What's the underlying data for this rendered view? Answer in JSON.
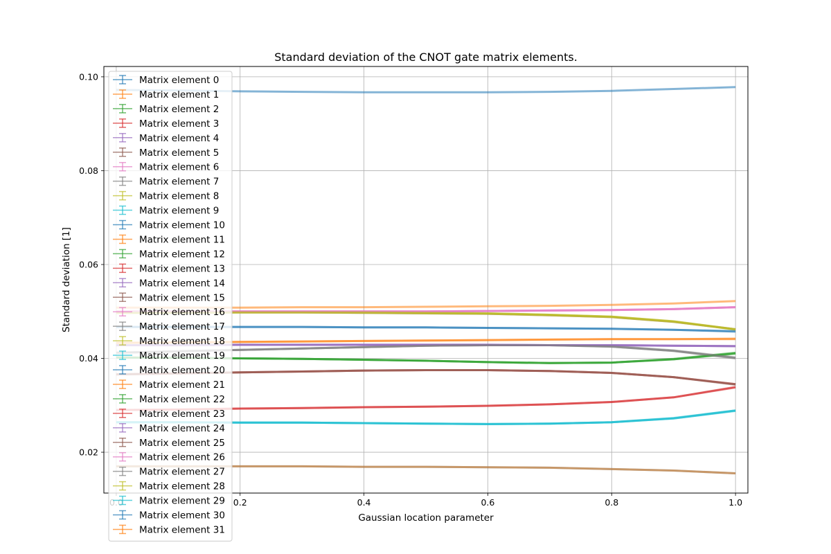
{
  "chart_data": {
    "type": "line",
    "title": "Standard deviation of the CNOT gate matrix elements.",
    "xlabel": "Gaussian location parameter",
    "ylabel": "Standard deviation [1]",
    "xlim": [
      -0.02,
      1.02
    ],
    "ylim": [
      0.0113,
      0.1022
    ],
    "xticks": [
      0.0,
      0.2,
      0.4,
      0.6,
      0.8,
      1.0
    ],
    "xtick_labels": [
      "0.0",
      "0.2",
      "0.4",
      "0.6",
      "0.8",
      "1.0"
    ],
    "yticks": [
      0.02,
      0.04,
      0.06,
      0.08,
      0.1
    ],
    "ytick_labels": [
      "0.02",
      "0.04",
      "0.06",
      "0.08",
      "0.10"
    ],
    "grid": true,
    "legend_position": "upper-left",
    "x": [
      0.0,
      0.1,
      0.2,
      0.3,
      0.4,
      0.5,
      0.6,
      0.7,
      0.8,
      0.9,
      1.0
    ],
    "colors": [
      "#1f77b4",
      "#ff7f0e",
      "#2ca02c",
      "#d62728",
      "#9467bd",
      "#8c564b",
      "#e377c2",
      "#7f7f7f",
      "#bcbd22",
      "#17becf"
    ],
    "series": [
      {
        "name": "Matrix element 0",
        "values": [
          0.0972,
          0.0971,
          0.0969,
          0.0968,
          0.0967,
          0.0967,
          0.0967,
          0.0968,
          0.097,
          0.0974,
          0.0978
        ]
      },
      {
        "name": "Matrix element 1",
        "values": [
          0.0508,
          0.0508,
          0.0508,
          0.0509,
          0.0509,
          0.051,
          0.0511,
          0.0512,
          0.0514,
          0.0517,
          0.0522
        ]
      },
      {
        "name": "Matrix element 2",
        "values": [
          0.0402,
          0.0401,
          0.04,
          0.0399,
          0.0397,
          0.0395,
          0.0392,
          0.039,
          0.0391,
          0.0398,
          0.041
        ]
      },
      {
        "name": "Matrix element 3",
        "values": [
          0.0366,
          0.0368,
          0.037,
          0.0372,
          0.0374,
          0.0375,
          0.0375,
          0.0373,
          0.0369,
          0.036,
          0.0345
        ]
      },
      {
        "name": "Matrix element 4",
        "values": [
          0.0428,
          0.0428,
          0.0429,
          0.0429,
          0.0429,
          0.0429,
          0.0429,
          0.0428,
          0.0428,
          0.0427,
          0.0426
        ]
      },
      {
        "name": "Matrix element 5",
        "values": [
          0.0497,
          0.0498,
          0.0498,
          0.0498,
          0.0497,
          0.0496,
          0.0495,
          0.0492,
          0.0488,
          0.0478,
          0.0462
        ]
      },
      {
        "name": "Matrix element 6",
        "values": [
          0.05,
          0.05,
          0.05,
          0.05,
          0.05,
          0.05,
          0.0501,
          0.0502,
          0.0503,
          0.0505,
          0.0509
        ]
      },
      {
        "name": "Matrix element 7",
        "values": [
          0.0412,
          0.0415,
          0.0418,
          0.0421,
          0.0424,
          0.0427,
          0.0428,
          0.0428,
          0.0425,
          0.0416,
          0.04
        ]
      },
      {
        "name": "Matrix element 8",
        "values": [
          0.0497,
          0.0497,
          0.0498,
          0.0498,
          0.0498,
          0.0497,
          0.0496,
          0.0493,
          0.0489,
          0.0479,
          0.0461
        ]
      },
      {
        "name": "Matrix element 9",
        "values": [
          0.0264,
          0.0264,
          0.0263,
          0.0263,
          0.0262,
          0.0261,
          0.026,
          0.0261,
          0.0264,
          0.0272,
          0.0288
        ]
      },
      {
        "name": "Matrix element 10",
        "values": [
          0.0467,
          0.0467,
          0.0467,
          0.0467,
          0.0466,
          0.0466,
          0.0465,
          0.0464,
          0.0463,
          0.0461,
          0.0457
        ]
      },
      {
        "name": "Matrix element 11",
        "values": [
          0.0433,
          0.0434,
          0.0435,
          0.0436,
          0.0437,
          0.0438,
          0.0439,
          0.044,
          0.0441,
          0.0441,
          0.0441
        ]
      },
      {
        "name": "Matrix element 12",
        "values": [
          0.0402,
          0.0401,
          0.04,
          0.0399,
          0.0397,
          0.0395,
          0.0392,
          0.039,
          0.0391,
          0.0399,
          0.0412
        ]
      },
      {
        "name": "Matrix element 13",
        "values": [
          0.029,
          0.0291,
          0.0293,
          0.0294,
          0.0296,
          0.0297,
          0.0299,
          0.0302,
          0.0307,
          0.0317,
          0.0338
        ]
      },
      {
        "name": "Matrix element 14",
        "values": [
          0.0428,
          0.0428,
          0.0429,
          0.0429,
          0.0429,
          0.0429,
          0.0429,
          0.0428,
          0.0428,
          0.0427,
          0.0426
        ]
      },
      {
        "name": "Matrix element 15",
        "values": [
          0.0366,
          0.0368,
          0.037,
          0.0372,
          0.0374,
          0.0375,
          0.0375,
          0.0373,
          0.0369,
          0.036,
          0.0344
        ]
      },
      {
        "name": "Matrix element 16",
        "values": [
          0.05,
          0.05,
          0.05,
          0.05,
          0.05,
          0.05,
          0.0501,
          0.0502,
          0.0503,
          0.0505,
          0.0509
        ]
      },
      {
        "name": "Matrix element 17",
        "values": [
          0.0412,
          0.0415,
          0.0418,
          0.0421,
          0.0424,
          0.0427,
          0.0428,
          0.0428,
          0.0426,
          0.0417,
          0.0402
        ]
      },
      {
        "name": "Matrix element 18",
        "values": [
          0.0497,
          0.0498,
          0.0498,
          0.0498,
          0.0497,
          0.0496,
          0.0495,
          0.0492,
          0.0488,
          0.0478,
          0.0462
        ]
      },
      {
        "name": "Matrix element 19",
        "values": [
          0.0264,
          0.0264,
          0.0263,
          0.0263,
          0.0262,
          0.0261,
          0.026,
          0.0261,
          0.0264,
          0.0272,
          0.0289
        ]
      },
      {
        "name": "Matrix element 20",
        "values": [
          0.0467,
          0.0467,
          0.0467,
          0.0467,
          0.0466,
          0.0466,
          0.0465,
          0.0464,
          0.0463,
          0.0461,
          0.0458
        ]
      },
      {
        "name": "Matrix element 21",
        "values": [
          0.0433,
          0.0434,
          0.0435,
          0.0436,
          0.0437,
          0.0438,
          0.0439,
          0.044,
          0.0441,
          0.0441,
          0.0442
        ]
      },
      {
        "name": "Matrix element 22",
        "values": [
          0.0402,
          0.0401,
          0.04,
          0.0399,
          0.0397,
          0.0395,
          0.0392,
          0.039,
          0.0391,
          0.0398,
          0.0411
        ]
      },
      {
        "name": "Matrix element 23",
        "values": [
          0.029,
          0.0291,
          0.0293,
          0.0294,
          0.0296,
          0.0297,
          0.0299,
          0.0302,
          0.0307,
          0.0317,
          0.0339
        ]
      },
      {
        "name": "Matrix element 24",
        "values": [
          0.0428,
          0.0428,
          0.0429,
          0.0429,
          0.0429,
          0.0429,
          0.0429,
          0.0428,
          0.0428,
          0.0427,
          0.0426
        ]
      },
      {
        "name": "Matrix element 25",
        "values": [
          0.0366,
          0.0368,
          0.037,
          0.0372,
          0.0374,
          0.0375,
          0.0375,
          0.0373,
          0.0369,
          0.036,
          0.0345
        ]
      },
      {
        "name": "Matrix element 26",
        "values": [
          0.05,
          0.05,
          0.05,
          0.05,
          0.05,
          0.05,
          0.0501,
          0.0502,
          0.0503,
          0.0505,
          0.0509
        ]
      },
      {
        "name": "Matrix element 27",
        "values": [
          0.0412,
          0.0415,
          0.0418,
          0.0421,
          0.0424,
          0.0427,
          0.0428,
          0.0428,
          0.0425,
          0.0416,
          0.0401
        ]
      },
      {
        "name": "Matrix element 28",
        "values": [
          0.0497,
          0.0497,
          0.0498,
          0.0498,
          0.0498,
          0.0497,
          0.0496,
          0.0493,
          0.0489,
          0.0479,
          0.0462
        ]
      },
      {
        "name": "Matrix element 29",
        "values": [
          0.0264,
          0.0264,
          0.0263,
          0.0263,
          0.0262,
          0.0261,
          0.026,
          0.0261,
          0.0264,
          0.0273,
          0.0289
        ]
      },
      {
        "name": "Matrix element 30",
        "values": [
          0.017,
          0.017,
          0.017,
          0.017,
          0.0169,
          0.0169,
          0.0168,
          0.0167,
          0.0164,
          0.0161,
          0.0155
        ]
      },
      {
        "name": "Matrix element 31",
        "values": [
          0.017,
          0.017,
          0.017,
          0.017,
          0.0169,
          0.0169,
          0.0168,
          0.0167,
          0.0164,
          0.0161,
          0.0155
        ]
      }
    ]
  }
}
